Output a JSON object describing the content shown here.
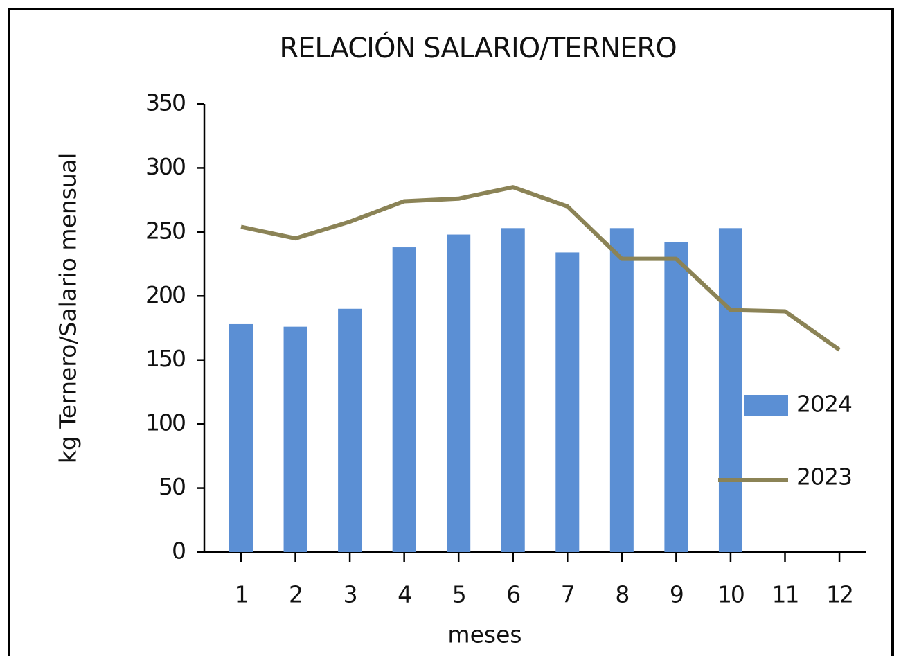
{
  "chart_data": {
    "type": "bar-line",
    "title": "RELACIÓN SALARIO/TERNERO",
    "x_label": "meses",
    "y_label": "kg Ternero/Salario mensual",
    "categories": [
      "1",
      "2",
      "3",
      "4",
      "5",
      "6",
      "7",
      "8",
      "9",
      "10",
      "11",
      "12"
    ],
    "series": [
      {
        "name": "2024",
        "type": "bar",
        "color": "#5b8fd4",
        "values": [
          178,
          176,
          190,
          238,
          248,
          253,
          234,
          253,
          242,
          253,
          null,
          null
        ]
      },
      {
        "name": "2023",
        "type": "line",
        "color": "#8b8356",
        "values": [
          254,
          245,
          258,
          274,
          276,
          285,
          270,
          229,
          229,
          189,
          188,
          158
        ]
      }
    ],
    "ylim": [
      0,
      350
    ],
    "yticks": [
      0,
      50,
      100,
      150,
      200,
      250,
      300,
      350
    ],
    "grid": false,
    "legend": "right"
  }
}
